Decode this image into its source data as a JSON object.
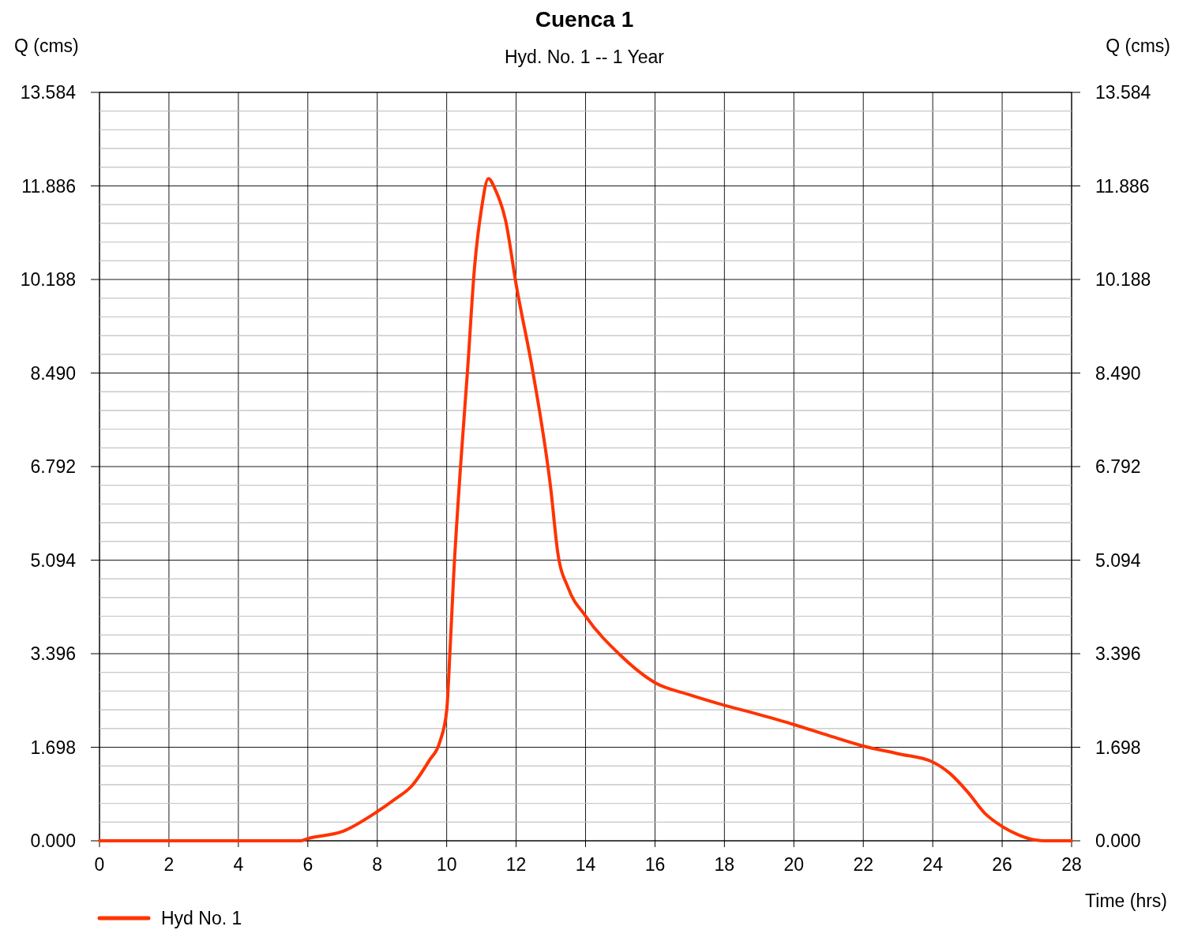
{
  "chart_data": {
    "type": "line",
    "title": "Cuenca 1",
    "subtitle": "Hyd. No. 1 -- 1 Year",
    "xlabel": "Time (hrs)",
    "ylabel": "Q (cms)",
    "y2label": "Q (cms)",
    "xlim": [
      0,
      28
    ],
    "xticks": [
      0,
      2,
      4,
      6,
      8,
      10,
      12,
      14,
      16,
      18,
      20,
      22,
      24,
      26,
      28
    ],
    "ylim": [
      0,
      13.584
    ],
    "yticks": [
      {
        "value": 0,
        "label": "0.000"
      },
      {
        "value": 0.3396,
        "label": null
      },
      {
        "value": 0.6792,
        "label": null
      },
      {
        "value": 1.0188,
        "label": null
      },
      {
        "value": 1.3584,
        "label": null
      },
      1.698,
      {
        "value": 2.0376,
        "label": null
      },
      {
        "value": 2.3772,
        "label": null
      },
      {
        "value": 2.7168,
        "label": null
      },
      {
        "value": 3.0564,
        "label": null
      },
      3.396,
      {
        "value": 3.7356,
        "label": null
      },
      {
        "value": 4.0752,
        "label": null
      },
      {
        "value": 4.4148,
        "label": null
      },
      {
        "value": 4.7544,
        "label": null
      },
      5.094,
      {
        "value": 5.4336,
        "label": null
      },
      {
        "value": 5.7732,
        "label": null
      },
      {
        "value": 6.1128,
        "label": null
      },
      {
        "value": 6.4524,
        "label": null
      },
      6.792,
      {
        "value": 7.1316,
        "label": null
      },
      {
        "value": 7.4712,
        "label": null
      },
      {
        "value": 7.8108,
        "label": null
      },
      {
        "value": 8.1504,
        "label": null
      },
      {
        "value": 8.49,
        "label": "8.490"
      },
      {
        "value": 8.8296,
        "label": null
      },
      {
        "value": 9.1692,
        "label": null
      },
      {
        "value": 9.5088,
        "label": null
      },
      {
        "value": 9.8484,
        "label": null
      },
      10.188,
      {
        "value": 10.5276,
        "label": null
      },
      {
        "value": 10.8672,
        "label": null
      },
      {
        "value": 11.2068,
        "label": null
      },
      {
        "value": 11.5464,
        "label": null
      },
      11.886,
      {
        "value": 12.2256,
        "label": null
      },
      {
        "value": 12.5652,
        "label": null
      },
      {
        "value": 12.9048,
        "label": null
      },
      {
        "value": 13.2444,
        "label": null
      },
      13.584
    ],
    "y2lim": [
      0,
      13.584
    ],
    "y2ticks": [
      {
        "value": 0,
        "label": "0.000"
      },
      {
        "value": 0.3396,
        "label": null
      },
      {
        "value": 0.6792,
        "label": null
      },
      {
        "value": 1.0188,
        "label": null
      },
      {
        "value": 1.3584,
        "label": null
      },
      1.698,
      {
        "value": 2.0376,
        "label": null
      },
      {
        "value": 2.3772,
        "label": null
      },
      {
        "value": 2.7168,
        "label": null
      },
      {
        "value": 3.0564,
        "label": null
      },
      3.396,
      {
        "value": 3.7356,
        "label": null
      },
      {
        "value": 4.0752,
        "label": null
      },
      {
        "value": 4.4148,
        "label": null
      },
      {
        "value": 4.7544,
        "label": null
      },
      5.094,
      {
        "value": 5.4336,
        "label": null
      },
      {
        "value": 5.7732,
        "label": null
      },
      {
        "value": 6.1128,
        "label": null
      },
      {
        "value": 6.4524,
        "label": null
      },
      6.792,
      {
        "value": 7.1316,
        "label": null
      },
      {
        "value": 7.4712,
        "label": null
      },
      {
        "value": 7.8108,
        "label": null
      },
      {
        "value": 8.1504,
        "label": null
      },
      {
        "value": 8.49,
        "label": "8.490"
      },
      {
        "value": 8.8296,
        "label": null
      },
      {
        "value": 9.1692,
        "label": null
      },
      {
        "value": 9.5088,
        "label": null
      },
      {
        "value": 9.8484,
        "label": null
      },
      10.188,
      {
        "value": 10.5276,
        "label": null
      },
      {
        "value": 10.8672,
        "label": null
      },
      {
        "value": 11.2068,
        "label": null
      },
      {
        "value": 11.5464,
        "label": null
      },
      11.886,
      {
        "value": 12.2256,
        "label": null
      },
      {
        "value": 12.5652,
        "label": null
      },
      {
        "value": 12.9048,
        "label": null
      },
      {
        "value": 13.2444,
        "label": null
      },
      13.584
    ],
    "grid": true,
    "legend": "bottom left",
    "marker": "none",
    "line_style": "solid",
    "series": [
      {
        "name": "Hyd No. 1",
        "color": "#ff3300",
        "x": [
          0,
          2,
          4,
          5.8,
          6,
          7,
          8,
          8.5,
          9,
          9.5,
          9.8,
          10,
          10.1,
          10.2,
          10.4,
          10.6,
          10.8,
          11,
          11.2,
          11.4,
          11.7,
          12,
          12.5,
          13,
          13.2,
          13.5,
          14,
          15,
          16,
          17,
          18,
          19,
          20,
          21,
          22,
          23,
          24,
          24.5,
          25,
          25.5,
          26,
          26.5,
          27,
          27.2,
          28
        ],
        "values": [
          0,
          0,
          0,
          0,
          0.04,
          0.17,
          0.53,
          0.75,
          1.0,
          1.46,
          1.79,
          2.36,
          3.5,
          4.8,
          6.8,
          8.53,
          10.39,
          11.46,
          12.02,
          11.82,
          11.25,
          10.1,
          8.45,
          6.38,
          5.23,
          4.59,
          4.08,
          3.37,
          2.87,
          2.65,
          2.46,
          2.29,
          2.11,
          1.91,
          1.72,
          1.58,
          1.43,
          1.22,
          0.89,
          0.5,
          0.26,
          0.1,
          0.01,
          0,
          0
        ]
      }
    ]
  }
}
